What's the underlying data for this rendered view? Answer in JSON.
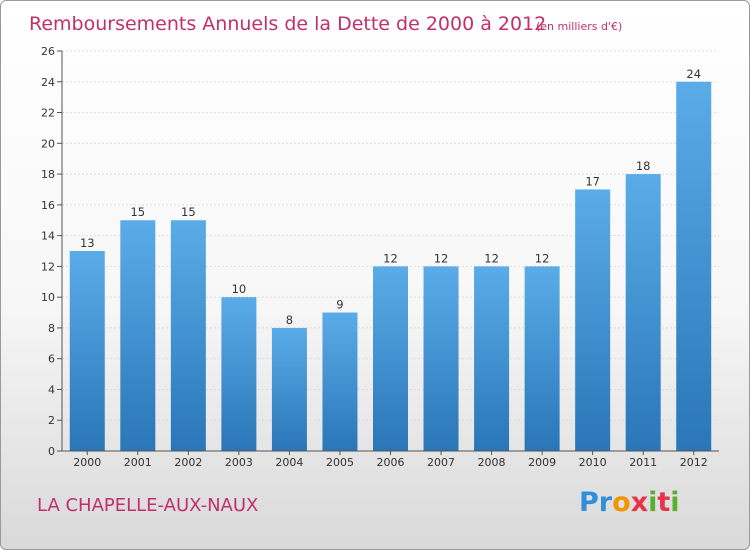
{
  "header": {
    "title": "Remboursements Annuels de la Dette de 2000 à 2012",
    "unit": "(en milliers d'€)"
  },
  "footer": {
    "commune": "LA CHAPELLE-AUX-NAUX",
    "logo": "Proxiti",
    "logo_letters": [
      "P",
      "r",
      "o",
      "x",
      "i",
      "t",
      "i"
    ],
    "logo_colors": [
      "#2f8fd8",
      "#2f8fd8",
      "#f29400",
      "#e8344a",
      "#58b030",
      "#e8344a",
      "#58b030"
    ]
  },
  "colors": {
    "bar_top": "#5aace8",
    "bar_bottom": "#2a76b8",
    "axis": "#555555",
    "grid": "#dcdcdc"
  },
  "chart_data": {
    "type": "bar",
    "categories": [
      "2000",
      "2001",
      "2002",
      "2003",
      "2004",
      "2005",
      "2006",
      "2007",
      "2008",
      "2009",
      "2010",
      "2011",
      "2012"
    ],
    "values": [
      13,
      15,
      15,
      10,
      8,
      9,
      12,
      12,
      12,
      12,
      17,
      18,
      24
    ],
    "title": "Remboursements Annuels de la Dette de 2000 à 2012",
    "subtitle": "(en milliers d'€)",
    "xlabel": "",
    "ylabel": "",
    "ylim": [
      0,
      26
    ],
    "yticks": [
      0,
      2,
      4,
      6,
      8,
      10,
      12,
      14,
      16,
      18,
      20,
      22,
      24,
      26
    ],
    "grid": true,
    "legend": "none"
  }
}
